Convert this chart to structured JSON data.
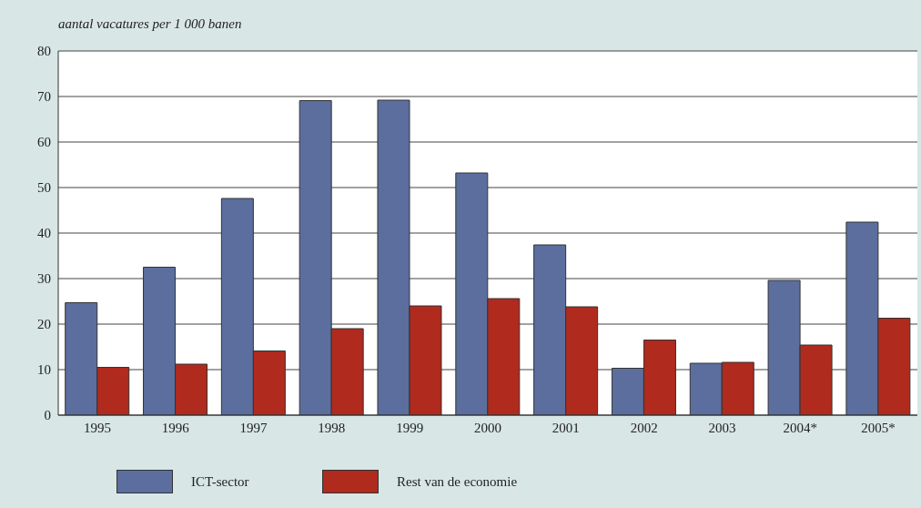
{
  "chart_data": {
    "type": "bar",
    "ylabel": "aantal vacatures per 1 000 banen",
    "categories": [
      "1995",
      "1996",
      "1997",
      "1998",
      "1999",
      "2000",
      "2001",
      "2002",
      "2003",
      "2004*",
      "2005*"
    ],
    "series": [
      {
        "name": "ICT-sector",
        "color": "#5b6e9e",
        "values": [
          24.7,
          32.5,
          47.6,
          69.1,
          69.2,
          53.2,
          37.4,
          10.3,
          11.4,
          29.6,
          42.4
        ]
      },
      {
        "name": "Rest van de economie",
        "color": "#b02a1e",
        "values": [
          10.5,
          11.2,
          14.1,
          19.0,
          24.0,
          25.6,
          23.8,
          16.5,
          11.6,
          15.4,
          21.3
        ]
      }
    ],
    "ylim": [
      0,
      80
    ],
    "yticks": [
      0,
      10,
      20,
      30,
      40,
      50,
      60,
      70,
      80
    ],
    "grid": "y",
    "legend": "bottom left"
  }
}
